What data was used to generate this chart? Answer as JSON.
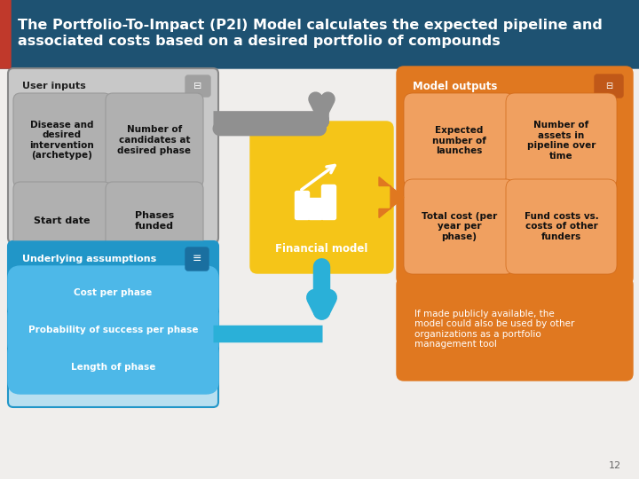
{
  "title": "The Portfolio-To-Impact (P2I) Model calculates the expected pipeline and\nassociated costs based on a desired portfolio of compounds",
  "title_bg": "#1e5272",
  "title_accent": "#c0392b",
  "title_color": "#ffffff",
  "title_fontsize": 11.5,
  "bg_color": "#f0eeec",
  "user_inputs_label": "User inputs",
  "user_inputs_bg": "#c8c8c8",
  "input_box_color": "#b0b0b0",
  "input_boxes": [
    {
      "text": "Disease and\ndesired\nintervention\n(archetype)"
    },
    {
      "text": "Number of\ncandidates at\ndesired phase"
    },
    {
      "text": "Start date"
    },
    {
      "text": "Phases\nfunded"
    }
  ],
  "assumptions_label": "Underlying assumptions",
  "assumptions_bg_header": "#2196c8",
  "assumptions_bg": "#d0eef8",
  "assumptions_box_color": "#4db8e8",
  "assumptions_boxes": [
    {
      "text": "Cost per phase"
    },
    {
      "text": "Probability of success per phase"
    },
    {
      "text": "Length of phase"
    }
  ],
  "financial_model_text": "Financial model",
  "financial_model_bg": "#f5c518",
  "model_outputs_label": "Model outputs",
  "model_outputs_bg": "#e07820",
  "output_box_color": "#f0a060",
  "output_boxes": [
    {
      "text": "Expected\nnumber of\nlaunches"
    },
    {
      "text": "Number of\nassets in\npipeline over\ntime"
    },
    {
      "text": "Total cost (per\nyear per\nphase)"
    },
    {
      "text": "Fund costs vs.\ncosts of other\nfunders"
    }
  ],
  "note_text": "If made publicly available, the\nmodel could also be used by other\norganizations as a portfolio\nmanagement tool",
  "note_bg": "#e07820",
  "note_color": "#ffffff",
  "arrow_gray": "#909090",
  "arrow_blue": "#2ab0d8",
  "arrow_orange": "#e07820",
  "page_number": "12"
}
